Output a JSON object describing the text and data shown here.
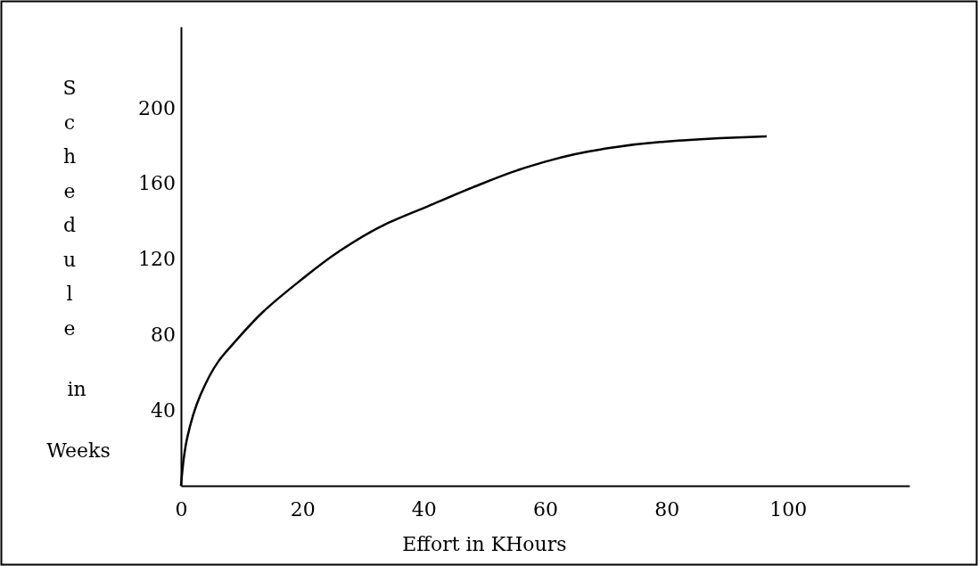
{
  "chart_data": {
    "type": "line",
    "xlabel": "Effort in KHours",
    "ylabel": "Schedule in Weeks",
    "x": [
      0,
      1,
      3.2,
      6.2,
      9.1,
      13.5,
      19.4,
      26,
      33.4,
      40.7,
      48.1,
      55.4,
      59.4,
      69.1,
      79,
      88.8,
      96.5
    ],
    "series": [
      {
        "color": "#000000",
        "values": [
          0,
          25,
          48,
          66,
          77,
          92,
          108,
          124,
          138,
          148,
          158,
          167,
          171,
          178,
          182,
          184,
          185
        ]
      }
    ],
    "xlim": [
      0,
      120
    ],
    "xticks": [
      0,
      20,
      40,
      60,
      80,
      100
    ],
    "ylim": [
      0,
      243
    ],
    "yticks": [
      40,
      80,
      120,
      160,
      200
    ],
    "grid": false,
    "marker": "none",
    "line_style": "solid"
  }
}
